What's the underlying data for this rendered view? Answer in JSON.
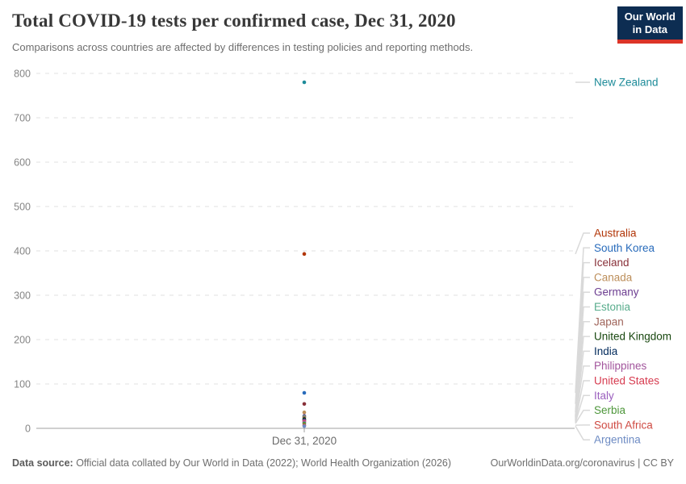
{
  "header": {
    "title": "Total COVID-19 tests per confirmed case, Dec 31, 2020",
    "subtitle": "Comparisons across countries are affected by differences in testing policies and reporting methods.",
    "logo": {
      "line1": "Our World",
      "line2": "in Data",
      "bg_color": "#0d2d52",
      "bar_color": "#dc3428"
    }
  },
  "chart_data": {
    "type": "scatter",
    "title": "Total COVID-19 tests per confirmed case, Dec 31, 2020",
    "x_categories": [
      "Dec 31, 2020"
    ],
    "xlabel": "",
    "ylabel": "",
    "ylim": [
      0,
      800
    ],
    "yticks": [
      0,
      100,
      200,
      300,
      400,
      500,
      600,
      700,
      800
    ],
    "grid": true,
    "legend_position": "right-labels",
    "series": [
      {
        "name": "New Zealand",
        "value": 780,
        "color": "#1d8b99"
      },
      {
        "name": "Australia",
        "value": 393,
        "color": "#b13507"
      },
      {
        "name": "South Korea",
        "value": 80,
        "color": "#286bbb"
      },
      {
        "name": "Iceland",
        "value": 55,
        "color": "#883039"
      },
      {
        "name": "Canada",
        "value": 36,
        "color": "#bc8e5a"
      },
      {
        "name": "Germany",
        "value": 28,
        "color": "#6d3e91"
      },
      {
        "name": "Estonia",
        "value": 26,
        "color": "#58ac8c"
      },
      {
        "name": "Japan",
        "value": 24,
        "color": "#a0655b"
      },
      {
        "name": "United Kingdom",
        "value": 21,
        "color": "#18470f"
      },
      {
        "name": "India",
        "value": 19,
        "color": "#00295b"
      },
      {
        "name": "Philippines",
        "value": 17,
        "color": "#a2559c"
      },
      {
        "name": "United States",
        "value": 15,
        "color": "#d73c50"
      },
      {
        "name": "Italy",
        "value": 13,
        "color": "#9b5fbe"
      },
      {
        "name": "Serbia",
        "value": 11,
        "color": "#4d963a"
      },
      {
        "name": "South Africa",
        "value": 7,
        "color": "#cf4a42"
      },
      {
        "name": "Argentina",
        "value": 5,
        "color": "#6d8bc3"
      }
    ]
  },
  "footer": {
    "datasource_label": "Data source:",
    "datasource_text": " Official data collated by Our World in Data (2022); World Health Organization (2026)",
    "link_text": "OurWorldinData.org/coronavirus | CC BY"
  }
}
